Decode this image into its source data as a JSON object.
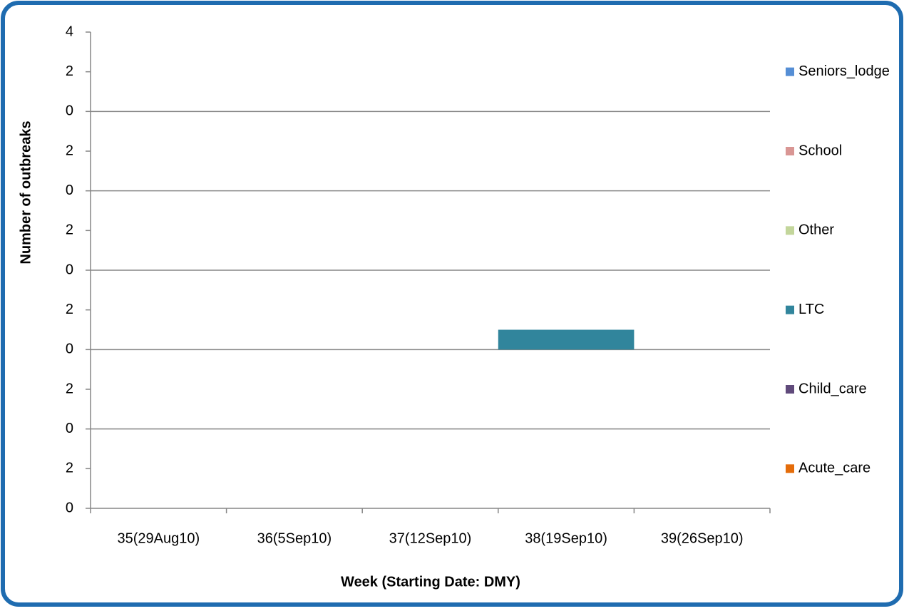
{
  "chart_data": {
    "type": "bar",
    "stacked": true,
    "x_label": "Week (Starting Date: DMY)",
    "y_label": "Number of outbreaks",
    "categories": [
      "35(29Aug10)",
      "36(5Sep10)",
      "37(12Sep10)",
      "38(19Sep10)",
      "39(26Sep10)"
    ],
    "series": [
      {
        "name": "Acute_care",
        "color": "#e46c0a",
        "values": [
          0,
          0,
          0,
          0,
          0
        ]
      },
      {
        "name": "Child_care",
        "color": "#604a7b",
        "values": [
          0,
          0,
          0,
          0,
          0
        ]
      },
      {
        "name": "LTC",
        "color": "#31859c",
        "values": [
          0,
          0,
          0,
          1,
          0
        ]
      },
      {
        "name": "Other",
        "color": "#c3d69b",
        "values": [
          0,
          0,
          0,
          0,
          0
        ]
      },
      {
        "name": "School",
        "color": "#d99694",
        "values": [
          0,
          0,
          0,
          0,
          0
        ]
      },
      {
        "name": "Seniors_lodge",
        "color": "#558ed5",
        "values": [
          0,
          0,
          0,
          0,
          0
        ]
      }
    ],
    "ylim": [
      0,
      24
    ],
    "yticks": [
      0,
      2,
      {
        "value": 4,
        "label": "0"
      },
      {
        "value": 6,
        "label": "2"
      },
      {
        "value": 8,
        "label": "0"
      },
      {
        "value": 10,
        "label": "2"
      },
      {
        "value": 12,
        "label": "0"
      },
      {
        "value": 14,
        "label": "2"
      },
      {
        "value": 16,
        "label": "0"
      },
      {
        "value": 18,
        "label": "2"
      },
      {
        "value": 20,
        "label": "0"
      },
      {
        "value": 22,
        "label": "2"
      },
      {
        "value": 24,
        "label": "4"
      }
    ],
    "grid": true,
    "legend": "right"
  }
}
